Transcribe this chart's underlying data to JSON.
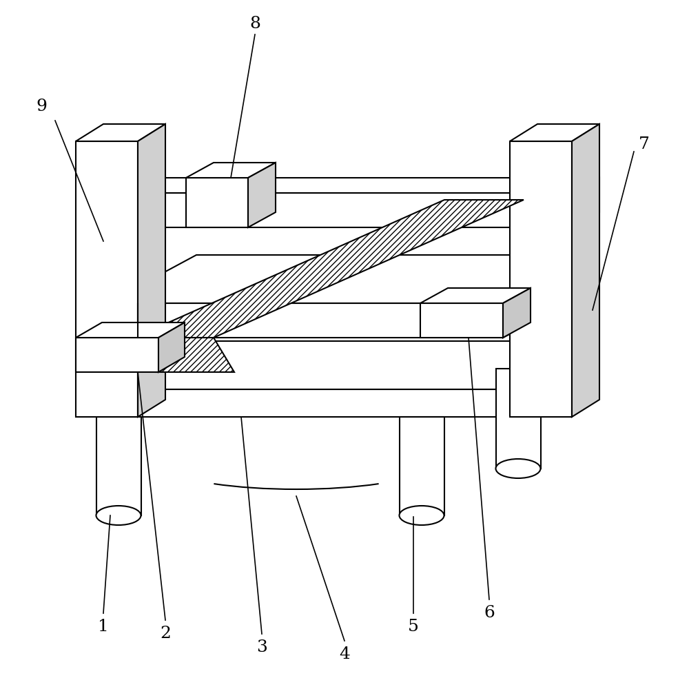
{
  "bg_color": "#ffffff",
  "line_color": "#000000",
  "lw": 1.5,
  "fig_width": 10.0,
  "fig_height": 9.97,
  "label_fontsize": 18
}
